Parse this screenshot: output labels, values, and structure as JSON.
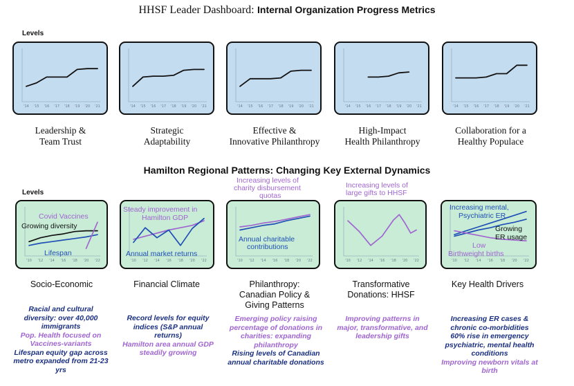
{
  "header": {
    "title_part1": "HHSF Leader Dashboard:",
    "title_part2": "Internal Organization Progress Metrics",
    "levels_label_top": "Levels",
    "section_title": "Hamilton Regional Patterns: Changing Key External Dynamics",
    "levels_label_bottom": "Levels"
  },
  "colors": {
    "top_panel_bg": "#c4dcf0",
    "bottom_panel_bg": "#c8ecd6",
    "black_line": "#111111",
    "blue_line": "#1f4fb5",
    "purple_line": "#a066d0",
    "note_blue": "#1a2f80",
    "note_purple": "#a066d0"
  },
  "top_tick_labels": [
    "'14",
    "'15",
    "'16",
    "'17",
    "'18",
    "'19",
    "'20",
    "'21"
  ],
  "bottom_tick_labels": [
    "'10",
    "'12",
    "'14",
    "'16",
    "'18",
    "'20",
    "'22"
  ],
  "captions_top": [
    {
      "line1": "Leadership &",
      "line2": "Team Trust"
    },
    {
      "line1": "Strategic",
      "line2": "Adaptability"
    },
    {
      "line1": "Effective &",
      "line2": "Innovative Philanthropy"
    },
    {
      "line1": "High-Impact",
      "line2": "Health Philanthropy"
    },
    {
      "line1": "Collaboration for a",
      "line2": "Healthy Populace"
    }
  ],
  "captions_bottom": [
    {
      "lines": [
        "Socio-Economic"
      ]
    },
    {
      "lines": [
        "Financial Climate"
      ]
    },
    {
      "lines": [
        "Philanthropy:",
        "Canadian Policy &",
        "Giving Patterns"
      ]
    },
    {
      "lines": [
        "Transformative",
        "Donations: HHSF"
      ]
    },
    {
      "lines": [
        "Key Health Drivers"
      ]
    }
  ],
  "annotations": {
    "p1_covid": "Covid Vaccines",
    "p1_diversity": "Growing diversity",
    "p1_lifespan": "Lifespan",
    "p2_gdp_1": "Steady improvement in",
    "p2_gdp_2": "Hamilton GDP",
    "p2_market": "Annual market returns",
    "p3_top_1": "Increasing levels of",
    "p3_top_2": "charity disbursement",
    "p3_top_3": "quotas",
    "p3_contrib_1": "Annual charitable",
    "p3_contrib_2": "contributions",
    "p4_top_1": "Increasing levels of",
    "p4_top_2": "large gifts to HHSF",
    "p5_mental_1": "Increasing mental,",
    "p5_mental_2": "Psychiatric ER",
    "p5_er_1": "Growing",
    "p5_er_2": "ER usage",
    "p5_low_1": "Low",
    "p5_low_2": "Birthweight births"
  },
  "notes": [
    {
      "items": [
        {
          "text": "Racial and cultural diversity: over 40,000 immigrants",
          "color": "blue"
        },
        {
          "text": "Pop. Health focused on Vaccines-variants",
          "color": "purple"
        },
        {
          "text": "Lifespan equity gap across metro expanded from 21-23 yrs",
          "color": "blue"
        }
      ]
    },
    {
      "items": [
        {
          "text": "Record levels for equity indices (S&P annual returns)",
          "color": "blue"
        },
        {
          "text": "Hamilton area annual GDP steadily growing",
          "color": "purple"
        }
      ]
    },
    {
      "items": [
        {
          "text": "Emerging policy raising percentage of donations in charities: expanding philanthropy",
          "color": "purple"
        },
        {
          "text": "Rising levels of Canadian annual charitable donations",
          "color": "blue"
        }
      ]
    },
    {
      "items": [
        {
          "text": "Improving patterns in major, transformative, and leadership gifts",
          "color": "purple"
        }
      ]
    },
    {
      "items": [
        {
          "text": "Increasing ER cases & chronic co-morbidities",
          "color": "blue"
        },
        {
          "text": "60% rise in emergency psychiatric, mental health conditions",
          "color": "blue"
        },
        {
          "text": "Improving newborn vitals at birth",
          "color": "purple"
        }
      ]
    }
  ],
  "chart_data": [
    {
      "type": "line",
      "title": "Leadership & Team Trust",
      "x": [
        2014,
        2015,
        2016,
        2017,
        2018,
        2019,
        2020,
        2021
      ],
      "ylim": [
        0,
        6
      ],
      "series": [
        {
          "values": [
            1.5,
            1.9,
            2.6,
            2.6,
            2.6,
            3.5,
            3.6,
            3.6
          ]
        }
      ]
    },
    {
      "type": "line",
      "title": "Strategic Adaptability",
      "x": [
        2014,
        2015,
        2016,
        2017,
        2018,
        2019,
        2020,
        2021
      ],
      "ylim": [
        0,
        6
      ],
      "series": [
        {
          "values": [
            1.5,
            2.6,
            2.7,
            2.7,
            2.8,
            3.4,
            3.5,
            3.5
          ]
        }
      ]
    },
    {
      "type": "line",
      "title": "Effective & Innovative Philanthropy",
      "x": [
        2014,
        2015,
        2016,
        2017,
        2018,
        2019,
        2020,
        2021
      ],
      "ylim": [
        0,
        6
      ],
      "series": [
        {
          "values": [
            1.5,
            2.4,
            2.4,
            2.4,
            2.5,
            3.3,
            3.4,
            3.4
          ]
        }
      ]
    },
    {
      "type": "line",
      "title": "High-Impact Health Philanthropy",
      "x": [
        2016,
        2017,
        2018,
        2019,
        2020
      ],
      "ylim": [
        0,
        6
      ],
      "series": [
        {
          "values": [
            2.6,
            2.6,
            2.7,
            3.1,
            3.2
          ]
        }
      ]
    },
    {
      "type": "line",
      "title": "Collaboration for a Healthy Populace",
      "x": [
        2014,
        2015,
        2016,
        2017,
        2018,
        2019,
        2020,
        2021
      ],
      "ylim": [
        0,
        6
      ],
      "series": [
        {
          "values": [
            2.5,
            2.5,
            2.5,
            2.6,
            3.0,
            3.0,
            4.0,
            4.0
          ]
        }
      ]
    },
    {
      "type": "line",
      "title": "Socio-Economic",
      "x": [
        2010,
        2012,
        2014,
        2016,
        2018,
        2020,
        2022
      ],
      "ylim": [
        0,
        6
      ],
      "series": [
        {
          "name": "Growing diversity",
          "values": [
            1.5,
            2.0,
            2.3,
            2.5,
            2.8,
            2.9,
            2.9
          ]
        },
        {
          "name": "Lifespan",
          "values": [
            1.0,
            1.3,
            1.5,
            1.7,
            1.9,
            2.1,
            2.4
          ]
        },
        {
          "name": "Covid Vaccines",
          "values": [
            null,
            null,
            null,
            null,
            null,
            0.6,
            4.0
          ]
        }
      ]
    },
    {
      "type": "line",
      "title": "Financial Climate",
      "x": [
        2010,
        2012,
        2014,
        2016,
        2018,
        2020,
        2022
      ],
      "ylim": [
        0,
        6
      ],
      "series": [
        {
          "name": "Steady improvement in Hamilton GDP",
          "values": [
            1.8,
            2.2,
            2.6,
            3.0,
            3.3,
            3.6,
            4.2
          ]
        },
        {
          "name": "Annual market returns",
          "values": [
            1.4,
            3.3,
            2.0,
            3.0,
            1.0,
            3.2,
            4.5
          ]
        }
      ]
    },
    {
      "type": "line",
      "title": "Philanthropy: Canadian Policy & Giving Patterns",
      "x": [
        2010,
        2012,
        2014,
        2016,
        2018,
        2020,
        2022
      ],
      "ylim": [
        0,
        6
      ],
      "series": [
        {
          "name": "Increasing levels of charity disbursement quotas",
          "values": [
            3.4,
            3.6,
            3.9,
            4.1,
            4.4,
            4.7,
            5.0
          ]
        },
        {
          "name": "Annual charitable contributions",
          "values": [
            3.0,
            3.3,
            3.6,
            3.8,
            4.2,
            4.5,
            4.8
          ]
        }
      ]
    },
    {
      "type": "line",
      "title": "Transformative Donations: HHSF",
      "x": [
        2010,
        2012,
        2014,
        2016,
        2018,
        2019,
        2020,
        2021,
        2022
      ],
      "ylim": [
        0,
        6
      ],
      "series": [
        {
          "name": "Increasing levels of large gifts to HHSF",
          "values": [
            4.2,
            2.8,
            1.0,
            2.2,
            4.3,
            5.0,
            3.9,
            2.6,
            3.0
          ]
        }
      ]
    },
    {
      "type": "line",
      "title": "Key Health Drivers",
      "x": [
        2010,
        2012,
        2014,
        2016,
        2018,
        2020,
        2022
      ],
      "ylim": [
        0,
        6
      ],
      "series": [
        {
          "name": "Increasing mental, Psychiatric ER",
          "values": [
            2.4,
            2.9,
            3.4,
            3.9,
            4.4,
            4.9,
            5.4
          ]
        },
        {
          "name": "Growing ER usage",
          "values": [
            2.2,
            2.6,
            3.0,
            3.3,
            3.7,
            4.0,
            4.4
          ]
        },
        {
          "name": "Low Birthweight births",
          "values": [
            2.9,
            2.6,
            2.3,
            2.0,
            1.8,
            1.7,
            1.6
          ]
        }
      ]
    }
  ]
}
